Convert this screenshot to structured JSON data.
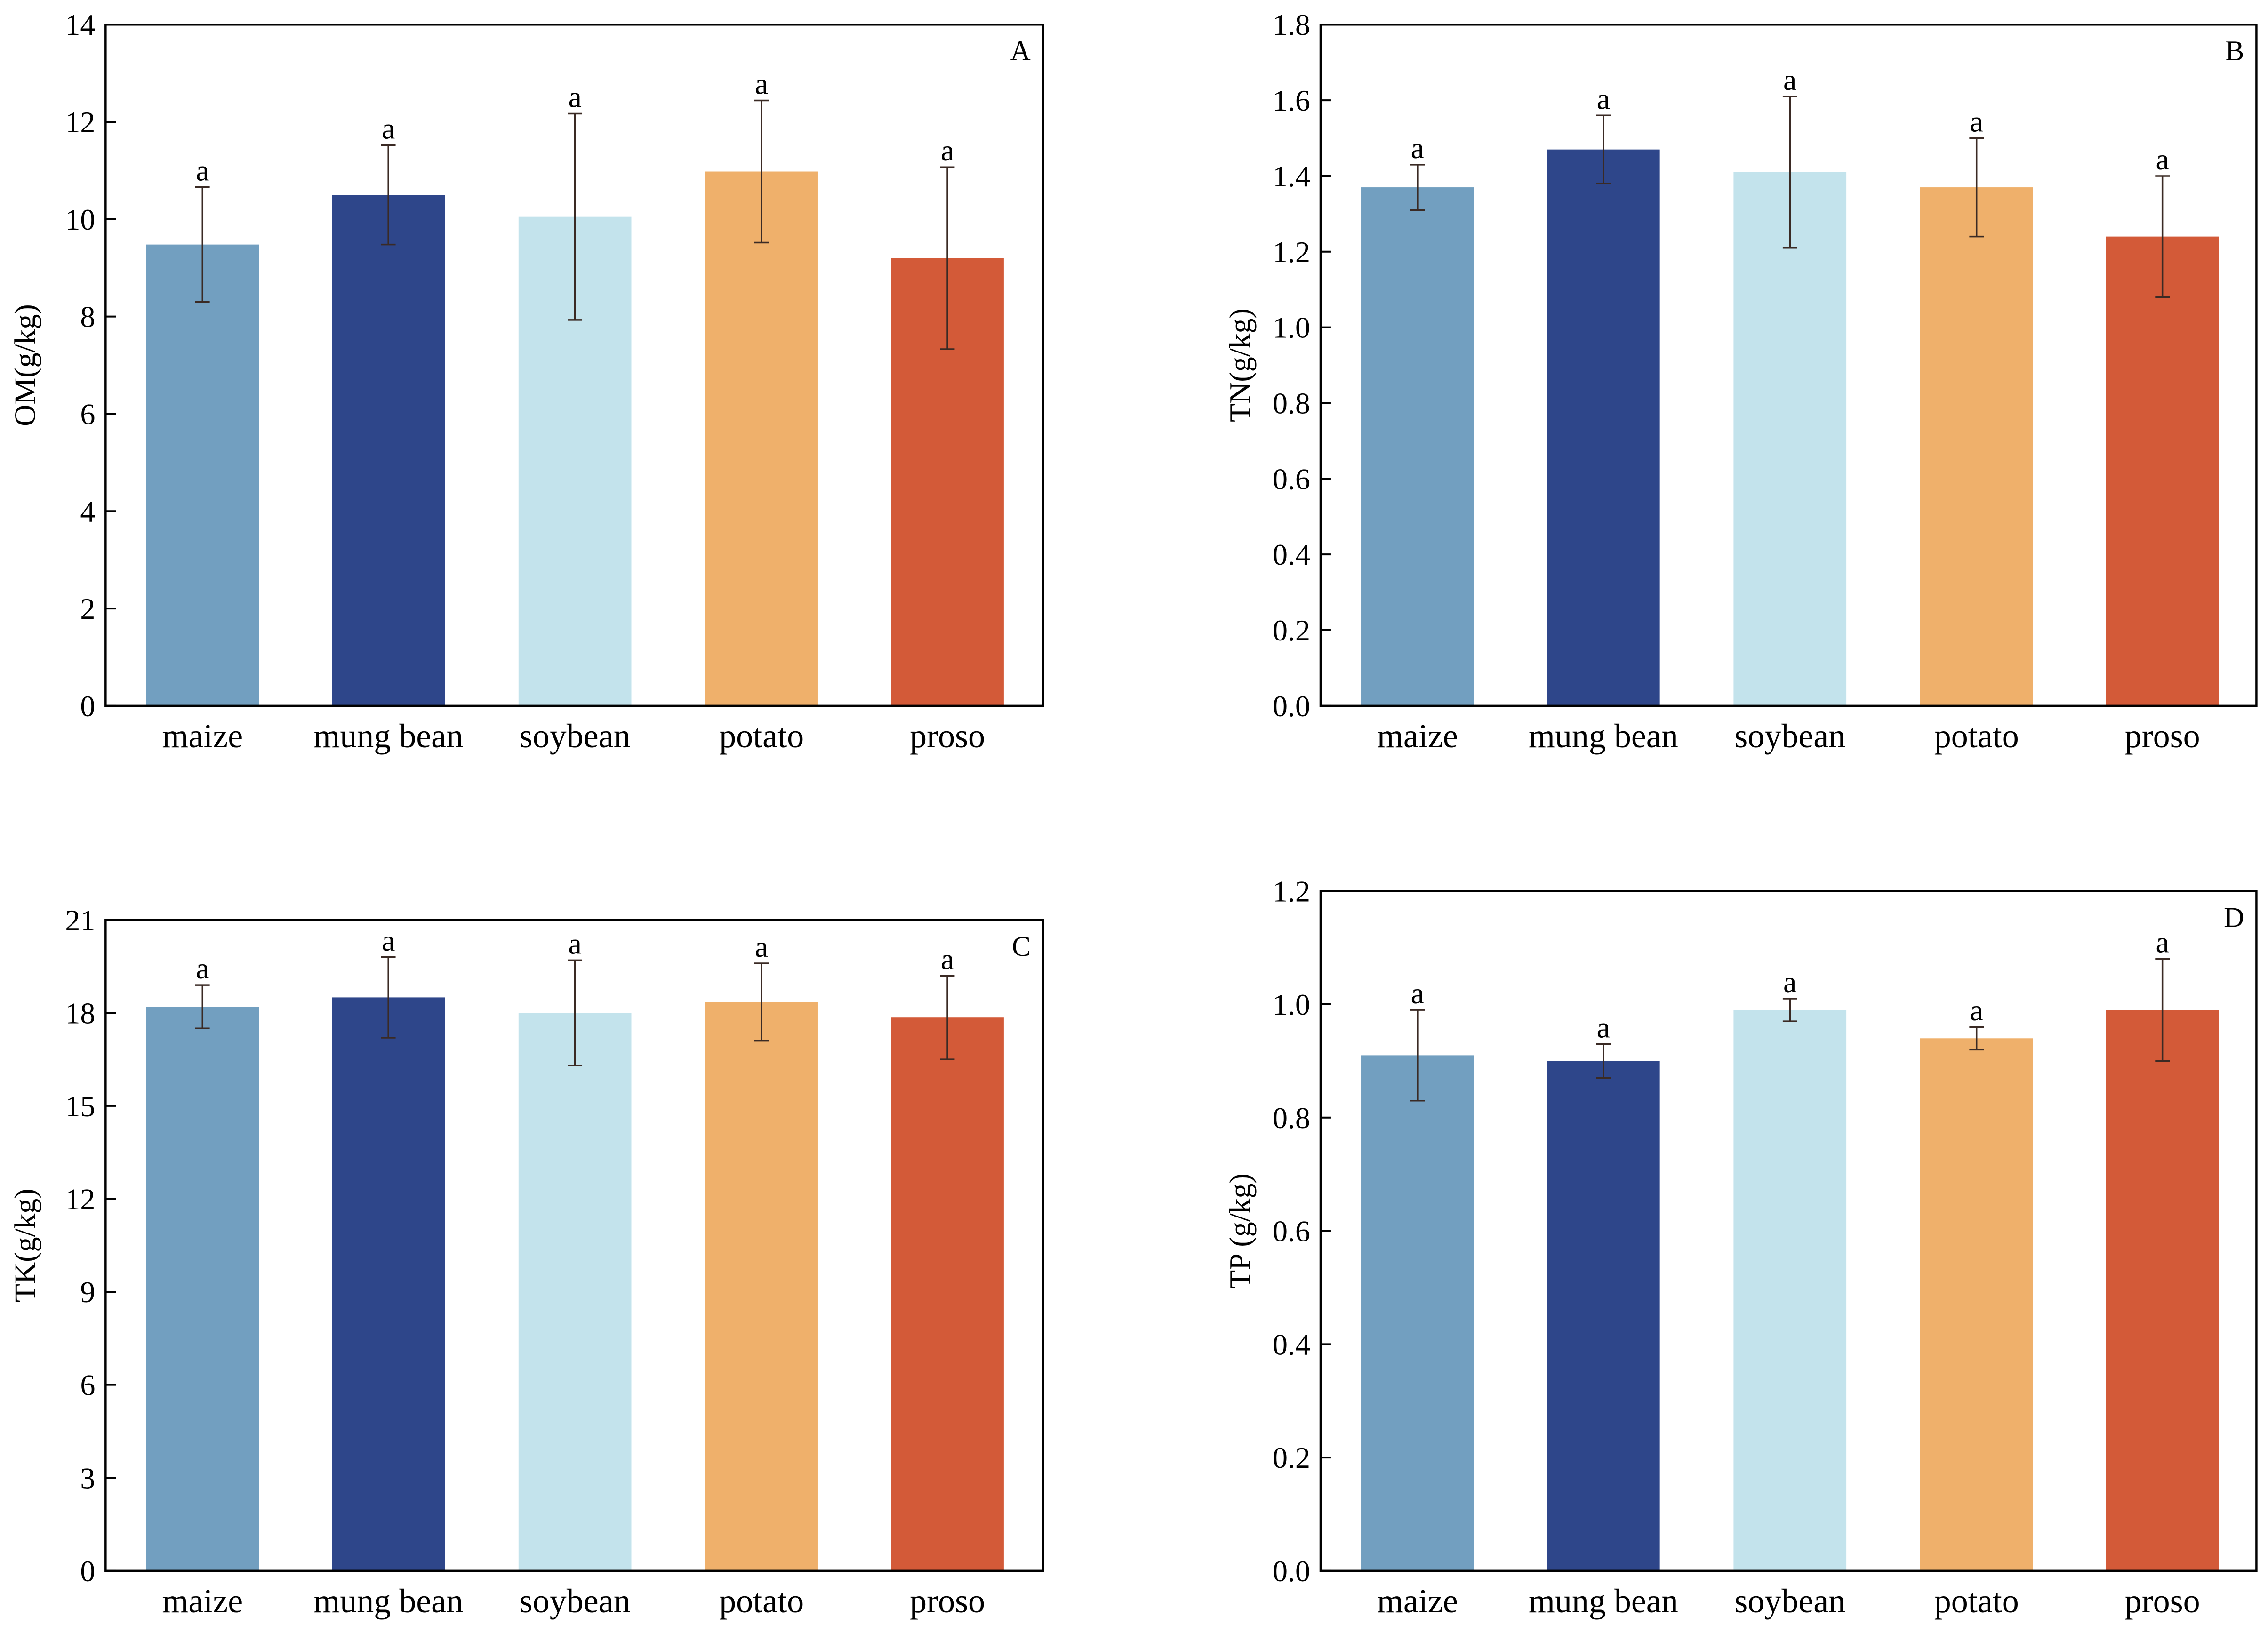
{
  "colors": {
    "maize": "#729fc0",
    "mung_bean": "#2e468a",
    "soybean": "#c3e3ec",
    "potato": "#efb06b",
    "proso": "#d35a38",
    "axis": "#000000",
    "error_bar": "#3a2a24"
  },
  "chart_data": [
    {
      "type": "bar",
      "panel": "A",
      "ylabel": "OM(g/kg)",
      "categories": [
        "maize",
        "mung bean",
        "soybean",
        "potato",
        "proso"
      ],
      "values": [
        9.48,
        10.5,
        10.05,
        10.98,
        9.2
      ],
      "errors": [
        1.18,
        1.02,
        2.12,
        1.46,
        1.87
      ],
      "significance": [
        "a",
        "a",
        "a",
        "a",
        "a"
      ],
      "ylim": [
        0,
        14
      ],
      "yticks": [
        0,
        2,
        4,
        6,
        8,
        10,
        12,
        14
      ],
      "ytick_labels": [
        "0",
        "2",
        "4",
        "6",
        "8",
        "10",
        "12",
        "14"
      ]
    },
    {
      "type": "bar",
      "panel": "B",
      "ylabel": "TN(g/kg)",
      "categories": [
        "maize",
        "mung bean",
        "soybean",
        "potato",
        "proso"
      ],
      "values": [
        1.37,
        1.47,
        1.41,
        1.37,
        1.24
      ],
      "errors": [
        0.06,
        0.09,
        0.2,
        0.13,
        0.16
      ],
      "significance": [
        "a",
        "a",
        "a",
        "a",
        "a"
      ],
      "ylim": [
        0,
        1.8
      ],
      "yticks": [
        0,
        0.2,
        0.4,
        0.6,
        0.8,
        1.0,
        1.2,
        1.4,
        1.6,
        1.8
      ],
      "ytick_labels": [
        "0.0",
        "0.2",
        "0.4",
        "0.6",
        "0.8",
        "1.0",
        "1.2",
        "1.4",
        "1.6",
        "1.8"
      ]
    },
    {
      "type": "bar",
      "panel": "C",
      "ylabel": "TK(g/kg)",
      "categories": [
        "maize",
        "mung bean",
        "soybean",
        "potato",
        "proso"
      ],
      "values": [
        18.2,
        18.5,
        18.0,
        18.35,
        17.85
      ],
      "errors": [
        0.7,
        1.3,
        1.7,
        1.25,
        1.35
      ],
      "significance": [
        "a",
        "a",
        "a",
        "a",
        "a"
      ],
      "ylim": [
        0,
        21
      ],
      "yticks": [
        0,
        3,
        6,
        9,
        12,
        15,
        18,
        21
      ],
      "ytick_labels": [
        "0",
        "3",
        "6",
        "9",
        "12",
        "15",
        "18",
        "21"
      ]
    },
    {
      "type": "bar",
      "panel": "D",
      "ylabel": "TP (g/kg)",
      "categories": [
        "maize",
        "mung bean",
        "soybean",
        "potato",
        "proso"
      ],
      "values": [
        0.91,
        0.9,
        0.99,
        0.94,
        0.99
      ],
      "errors": [
        0.08,
        0.03,
        0.02,
        0.02,
        0.09
      ],
      "significance": [
        "a",
        "a",
        "a",
        "a",
        "a"
      ],
      "ylim": [
        0,
        1.2
      ],
      "yticks": [
        0,
        0.2,
        0.4,
        0.6,
        0.8,
        1.0,
        1.2
      ],
      "ytick_labels": [
        "0.0",
        "0.2",
        "0.4",
        "0.6",
        "0.8",
        "1.0",
        "1.2"
      ]
    }
  ]
}
